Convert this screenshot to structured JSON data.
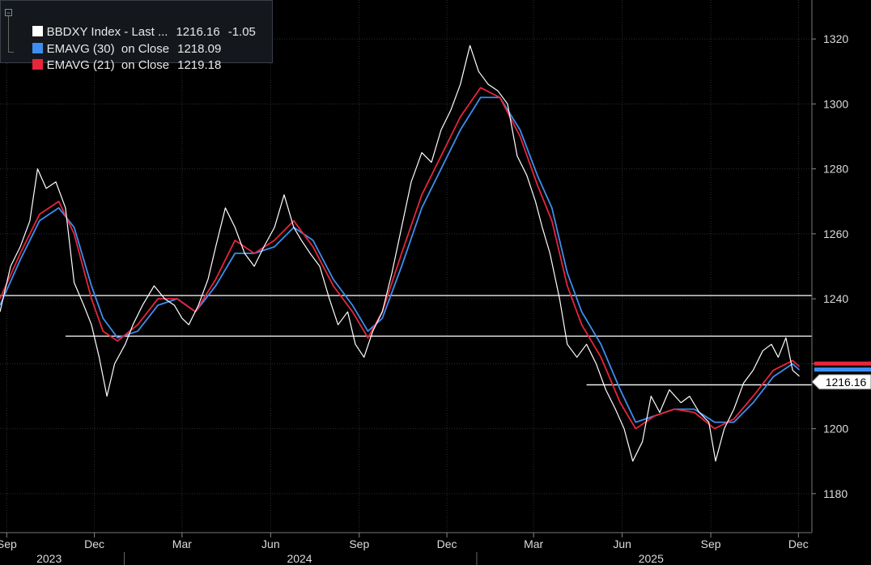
{
  "legend": [
    {
      "name": "BBDXY Index - Last ...",
      "value": "1216.16",
      "change": "-1.05",
      "color": "#ffffff"
    },
    {
      "name": "EMAVG (30)  on Close",
      "value": "1218.09",
      "change": "",
      "color": "#3d8ef0"
    },
    {
      "name": "EMAVG (21)  on Close",
      "value": "1219.18",
      "change": "",
      "color": "#e8253b"
    }
  ],
  "last_price_label": "1216.16",
  "colors": {
    "background": "#000000",
    "grid": "#2a2f36",
    "price": "#ffffff",
    "ema30": "#3d8ef0",
    "ema21": "#e8253b",
    "axis_text": "#dcdcdc"
  },
  "chart_data": {
    "type": "line",
    "title": "",
    "ylim": [
      1168,
      1332
    ],
    "y_ticks": [
      1180,
      1200,
      1220,
      1240,
      1260,
      1280,
      1300,
      1320
    ],
    "y_tick_labels": [
      "1180",
      "1200",
      "",
      "1240",
      "1260",
      "1280",
      "1300",
      "1320"
    ],
    "x_tick_labels": [
      "Sep",
      "Dec",
      "Mar",
      "Jun",
      "Sep",
      "Dec",
      "Mar",
      "Jun",
      "Sep",
      "Dec"
    ],
    "x_year_labels": [
      "2023",
      "2024",
      "2025"
    ],
    "x_range": [
      "2023-08-25",
      "2025-12-15"
    ],
    "x_ticks": [
      "2023-09-01",
      "2023-12-01",
      "2024-03-01",
      "2024-06-01",
      "2024-09-01",
      "2024-12-01",
      "2025-03-01",
      "2025-06-01",
      "2025-09-01",
      "2025-12-01"
    ],
    "x_year_dates": [
      "2023-10-15",
      "2024-07-01",
      "2025-07-01"
    ],
    "x_year_dividers": [
      "2024-01-01",
      "2025-01-01"
    ],
    "grid": true,
    "legend_position": "top-left",
    "horizontal_lines": [
      {
        "y": 1241,
        "from": "2023-08-25",
        "to": "2025-12-15"
      },
      {
        "y": 1228.5,
        "from": "2023-11-01",
        "to": "2025-12-15"
      },
      {
        "y": 1213.5,
        "from": "2025-04-25",
        "to": "2025-12-15"
      }
    ],
    "series": [
      {
        "name": "BBDXY Index - Last ...",
        "color": "#ffffff",
        "points": [
          [
            "2023-08-25",
            1236
          ],
          [
            "2023-09-05",
            1250
          ],
          [
            "2023-09-15",
            1256
          ],
          [
            "2023-09-25",
            1264
          ],
          [
            "2023-10-03",
            1280
          ],
          [
            "2023-10-12",
            1274
          ],
          [
            "2023-10-22",
            1276
          ],
          [
            "2023-11-01",
            1268
          ],
          [
            "2023-11-10",
            1245
          ],
          [
            "2023-11-20",
            1238
          ],
          [
            "2023-11-28",
            1232
          ],
          [
            "2023-12-06",
            1222
          ],
          [
            "2023-12-14",
            1210
          ],
          [
            "2023-12-22",
            1220
          ],
          [
            "2024-01-02",
            1226
          ],
          [
            "2024-01-10",
            1232
          ],
          [
            "2024-01-20",
            1238
          ],
          [
            "2024-02-01",
            1244
          ],
          [
            "2024-02-12",
            1240
          ],
          [
            "2024-02-22",
            1238
          ],
          [
            "2024-03-01",
            1234
          ],
          [
            "2024-03-08",
            1232
          ],
          [
            "2024-03-18",
            1238
          ],
          [
            "2024-03-28",
            1246
          ],
          [
            "2024-04-05",
            1256
          ],
          [
            "2024-04-15",
            1268
          ],
          [
            "2024-04-25",
            1262
          ],
          [
            "2024-05-05",
            1254
          ],
          [
            "2024-05-15",
            1250
          ],
          [
            "2024-05-25",
            1256
          ],
          [
            "2024-06-05",
            1262
          ],
          [
            "2024-06-15",
            1272
          ],
          [
            "2024-06-25",
            1262
          ],
          [
            "2024-07-03",
            1258
          ],
          [
            "2024-07-12",
            1254
          ],
          [
            "2024-07-22",
            1250
          ],
          [
            "2024-08-01",
            1240
          ],
          [
            "2024-08-10",
            1232
          ],
          [
            "2024-08-20",
            1236
          ],
          [
            "2024-08-28",
            1226
          ],
          [
            "2024-09-06",
            1222
          ],
          [
            "2024-09-15",
            1230
          ],
          [
            "2024-09-25",
            1236
          ],
          [
            "2024-10-05",
            1248
          ],
          [
            "2024-10-15",
            1262
          ],
          [
            "2024-10-25",
            1276
          ],
          [
            "2024-11-05",
            1285
          ],
          [
            "2024-11-15",
            1282
          ],
          [
            "2024-11-25",
            1292
          ],
          [
            "2024-12-05",
            1298
          ],
          [
            "2024-12-15",
            1306
          ],
          [
            "2024-12-25",
            1318
          ],
          [
            "2025-01-03",
            1310
          ],
          [
            "2025-01-13",
            1306
          ],
          [
            "2025-01-23",
            1304
          ],
          [
            "2025-02-02",
            1300
          ],
          [
            "2025-02-12",
            1284
          ],
          [
            "2025-02-22",
            1278
          ],
          [
            "2025-03-03",
            1270
          ],
          [
            "2025-03-10",
            1262
          ],
          [
            "2025-03-18",
            1254
          ],
          [
            "2025-03-28",
            1240
          ],
          [
            "2025-04-05",
            1226
          ],
          [
            "2025-04-15",
            1222
          ],
          [
            "2025-04-25",
            1226
          ],
          [
            "2025-05-05",
            1220
          ],
          [
            "2025-05-15",
            1212
          ],
          [
            "2025-05-25",
            1206
          ],
          [
            "2025-06-03",
            1200
          ],
          [
            "2025-06-12",
            1190
          ],
          [
            "2025-06-22",
            1196
          ],
          [
            "2025-07-01",
            1210
          ],
          [
            "2025-07-10",
            1205
          ],
          [
            "2025-07-20",
            1212
          ],
          [
            "2025-08-01",
            1208
          ],
          [
            "2025-08-10",
            1210
          ],
          [
            "2025-08-20",
            1205
          ],
          [
            "2025-08-30",
            1202
          ],
          [
            "2025-09-06",
            1190
          ],
          [
            "2025-09-15",
            1200
          ],
          [
            "2025-09-25",
            1206
          ],
          [
            "2025-10-05",
            1214
          ],
          [
            "2025-10-15",
            1218
          ],
          [
            "2025-10-25",
            1224
          ],
          [
            "2025-11-03",
            1226
          ],
          [
            "2025-11-10",
            1222
          ],
          [
            "2025-11-18",
            1228
          ],
          [
            "2025-11-25",
            1218
          ],
          [
            "2025-12-02",
            1216.16
          ]
        ]
      },
      {
        "name": "EMAVG (30) on Close",
        "color": "#3d8ef0",
        "points": [
          [
            "2023-08-25",
            1238
          ],
          [
            "2023-09-15",
            1252
          ],
          [
            "2023-10-05",
            1264
          ],
          [
            "2023-10-25",
            1268
          ],
          [
            "2023-11-10",
            1262
          ],
          [
            "2023-11-28",
            1244
          ],
          [
            "2023-12-10",
            1234
          ],
          [
            "2023-12-25",
            1228
          ],
          [
            "2024-01-15",
            1230
          ],
          [
            "2024-02-05",
            1238
          ],
          [
            "2024-02-25",
            1240
          ],
          [
            "2024-03-15",
            1236
          ],
          [
            "2024-04-05",
            1244
          ],
          [
            "2024-04-25",
            1254
          ],
          [
            "2024-05-15",
            1254
          ],
          [
            "2024-06-05",
            1256
          ],
          [
            "2024-06-25",
            1262
          ],
          [
            "2024-07-15",
            1258
          ],
          [
            "2024-08-05",
            1246
          ],
          [
            "2024-08-25",
            1238
          ],
          [
            "2024-09-10",
            1230
          ],
          [
            "2024-09-25",
            1234
          ],
          [
            "2024-10-15",
            1250
          ],
          [
            "2024-11-05",
            1268
          ],
          [
            "2024-11-25",
            1280
          ],
          [
            "2024-12-15",
            1292
          ],
          [
            "2025-01-05",
            1302
          ],
          [
            "2025-01-25",
            1302
          ],
          [
            "2025-02-15",
            1292
          ],
          [
            "2025-03-05",
            1278
          ],
          [
            "2025-03-20",
            1268
          ],
          [
            "2025-04-05",
            1248
          ],
          [
            "2025-04-20",
            1236
          ],
          [
            "2025-05-10",
            1226
          ],
          [
            "2025-05-30",
            1212
          ],
          [
            "2025-06-15",
            1202
          ],
          [
            "2025-07-05",
            1204
          ],
          [
            "2025-07-25",
            1206
          ],
          [
            "2025-08-15",
            1206
          ],
          [
            "2025-09-05",
            1202
          ],
          [
            "2025-09-25",
            1202
          ],
          [
            "2025-10-15",
            1208
          ],
          [
            "2025-11-05",
            1216
          ],
          [
            "2025-11-25",
            1220
          ],
          [
            "2025-12-02",
            1218.09
          ]
        ]
      },
      {
        "name": "EMAVG (21) on Close",
        "color": "#e8253b",
        "points": [
          [
            "2023-08-25",
            1240
          ],
          [
            "2023-09-15",
            1254
          ],
          [
            "2023-10-05",
            1266
          ],
          [
            "2023-10-25",
            1270
          ],
          [
            "2023-11-10",
            1260
          ],
          [
            "2023-11-28",
            1240
          ],
          [
            "2023-12-10",
            1230
          ],
          [
            "2023-12-25",
            1227
          ],
          [
            "2024-01-15",
            1232
          ],
          [
            "2024-02-05",
            1240
          ],
          [
            "2024-02-25",
            1240
          ],
          [
            "2024-03-15",
            1236
          ],
          [
            "2024-04-05",
            1246
          ],
          [
            "2024-04-25",
            1258
          ],
          [
            "2024-05-15",
            1254
          ],
          [
            "2024-06-05",
            1258
          ],
          [
            "2024-06-25",
            1264
          ],
          [
            "2024-07-15",
            1256
          ],
          [
            "2024-08-05",
            1244
          ],
          [
            "2024-08-25",
            1236
          ],
          [
            "2024-09-10",
            1228
          ],
          [
            "2024-09-25",
            1236
          ],
          [
            "2024-10-15",
            1254
          ],
          [
            "2024-11-05",
            1272
          ],
          [
            "2024-11-25",
            1284
          ],
          [
            "2024-12-15",
            1296
          ],
          [
            "2025-01-05",
            1305
          ],
          [
            "2025-01-25",
            1302
          ],
          [
            "2025-02-15",
            1290
          ],
          [
            "2025-03-05",
            1275
          ],
          [
            "2025-03-20",
            1264
          ],
          [
            "2025-04-05",
            1244
          ],
          [
            "2025-04-20",
            1232
          ],
          [
            "2025-05-10",
            1222
          ],
          [
            "2025-05-30",
            1208
          ],
          [
            "2025-06-15",
            1200
          ],
          [
            "2025-07-05",
            1204
          ],
          [
            "2025-07-25",
            1206
          ],
          [
            "2025-08-15",
            1205
          ],
          [
            "2025-09-05",
            1200
          ],
          [
            "2025-09-25",
            1203
          ],
          [
            "2025-10-15",
            1210
          ],
          [
            "2025-11-05",
            1218
          ],
          [
            "2025-11-25",
            1221
          ],
          [
            "2025-12-02",
            1219.18
          ]
        ]
      }
    ]
  }
}
